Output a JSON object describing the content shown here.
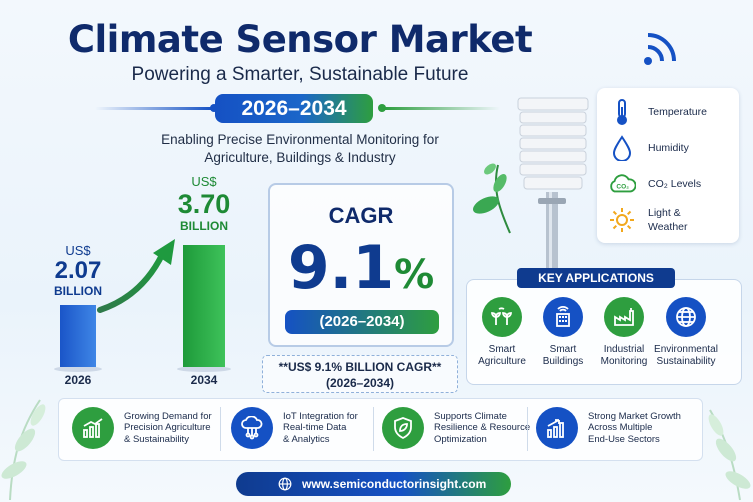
{
  "header": {
    "title": "Climate Sensor Market",
    "subtitle": "Powering a Smarter, Sustainable Future",
    "period": "2026–2034",
    "tagline_line1": "Enabling Precise Environmental Monitoring for",
    "tagline_line2": "Agriculture, Buildings & Industry"
  },
  "market": {
    "start": {
      "currency": "US$",
      "value": "2.07",
      "unit": "BILLION",
      "year": "2026",
      "billions": 2.07
    },
    "end": {
      "currency": "US$",
      "value": "3.70",
      "unit": "BILLION",
      "year": "2034",
      "billions": 3.7
    }
  },
  "cagr": {
    "label": "CAGR",
    "value": "9.1",
    "percent_sign": "%",
    "period": "(2026–2034)",
    "note_line1": "**US$ 9.1% BILLION CAGR**",
    "note_line2": "(2026–2034)"
  },
  "sensors": [
    {
      "icon": "thermometer-icon",
      "label_line1": "Temperature",
      "label_line2": ""
    },
    {
      "icon": "water-drop-icon",
      "label_line1": "Humidity",
      "label_line2": ""
    },
    {
      "icon": "co2-cloud-icon",
      "label_line1": "CO₂ Levels",
      "label_line2": ""
    },
    {
      "icon": "sun-icon",
      "label_line1": "Light &",
      "label_line2": "Weather"
    }
  ],
  "applications": {
    "title": "KEY APPLICATIONS",
    "items": [
      {
        "icon": "sprout-icon",
        "line1": "Smart",
        "line2": "Agriculture",
        "color": "#2e9e3f"
      },
      {
        "icon": "building-icon",
        "line1": "Smart",
        "line2": "Buildings",
        "color": "#1551c4"
      },
      {
        "icon": "factory-icon",
        "line1": "Industrial",
        "line2": "Monitoring",
        "color": "#2e9e3f"
      },
      {
        "icon": "globe-icon",
        "line1": "Environmental",
        "line2": "Sustainability",
        "color": "#1551c4"
      }
    ]
  },
  "features": [
    {
      "icon": "growth-chart-icon",
      "lines": [
        "Growing Demand for",
        "Precision Agriculture",
        "& Sustainability"
      ],
      "color": "#2e9e3f"
    },
    {
      "icon": "cloud-network-icon",
      "lines": [
        "IoT Integration for",
        "Real-time Data",
        "& Analytics"
      ],
      "color": "#1551c4"
    },
    {
      "icon": "shield-leaf-icon",
      "lines": [
        "Supports Climate",
        "Resilience & Resource",
        "Optimization"
      ],
      "color": "#2e9e3f"
    },
    {
      "icon": "bar-growth-icon",
      "lines": [
        "Strong Market Growth",
        "Across Multiple",
        "End-Use Sectors"
      ],
      "color": "#1551c4"
    }
  ],
  "footer": {
    "website": "www.semiconductorinsight.com"
  }
}
